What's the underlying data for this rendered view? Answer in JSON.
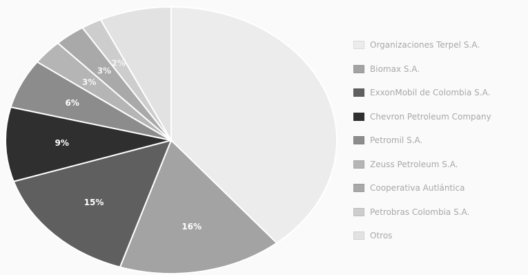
{
  "chart_data": {
    "type": "pie",
    "title": "",
    "legend_position": "right",
    "slices": [
      {
        "label": "Organizaciones Terpel S.A.",
        "value": 39,
        "display": "",
        "color": "#ececec"
      },
      {
        "label": "Biomax S.A.",
        "value": 16,
        "display": "16%",
        "color": "#a3a3a3"
      },
      {
        "label": "ExxonMobil de Colombia S.A.",
        "value": 15,
        "display": "15%",
        "color": "#5f5f5f"
      },
      {
        "label": "Chevron Petroleum Company",
        "value": 9,
        "display": "9%",
        "color": "#2f2f2f"
      },
      {
        "label": "Petromil S.A.",
        "value": 6,
        "display": "6%",
        "color": "#8c8c8c"
      },
      {
        "label": "Zeuss Petroleum S.A.",
        "value": 3,
        "display": "3%",
        "color": "#b5b5b5"
      },
      {
        "label": "Cooperativa Autlántica",
        "value": 3,
        "display": "3%",
        "color": "#a9a9a9"
      },
      {
        "label": "Petrobras Colombia S.A.",
        "value": 2,
        "display": "2%",
        "color": "#cdcdcd"
      },
      {
        "label": "Otros",
        "value": 7,
        "display": "",
        "color": "#e2e2e2"
      }
    ]
  }
}
